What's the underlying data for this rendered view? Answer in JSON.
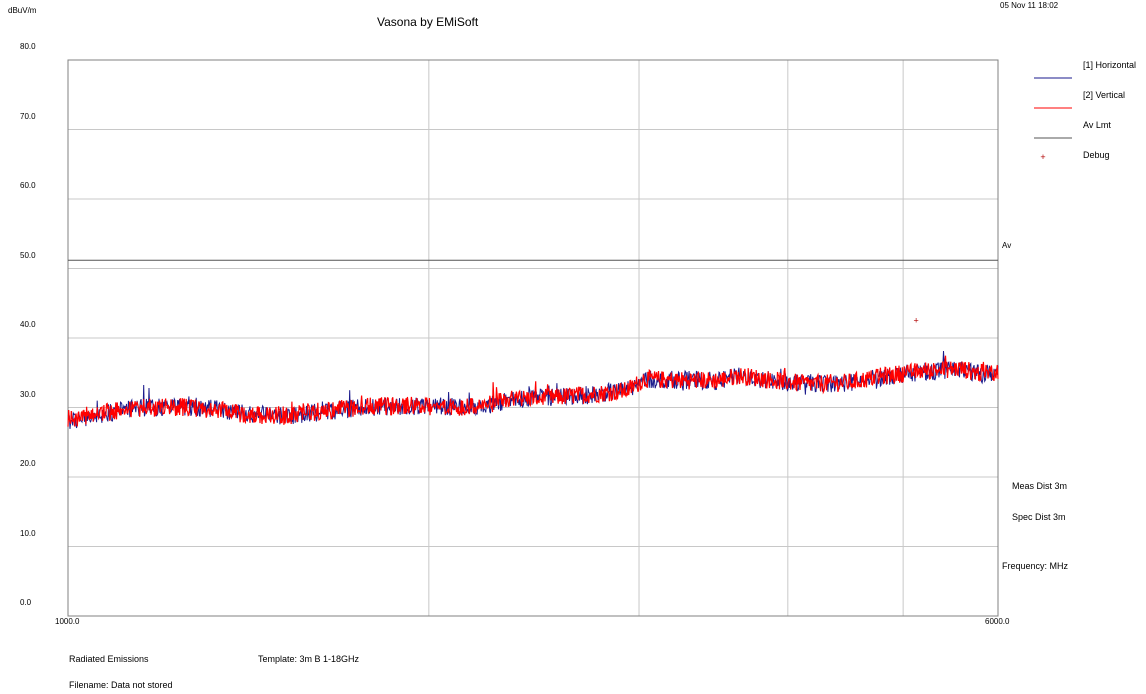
{
  "header": {
    "title": "Vasona by EMiSoft",
    "timestamp": "05 Nov 11 18:02"
  },
  "footer": {
    "test_type": "Radiated Emissions",
    "template": "Template: 3m B 1-18GHz",
    "filename": "Filename: Data not stored"
  },
  "side_notes": {
    "meas_dist": "Meas Dist 3m",
    "spec_dist": "Spec Dist 3m",
    "frequency_unit": "Frequency: MHz",
    "limit_tag": "Av"
  },
  "colors": {
    "horizontal": "#1a1a8c",
    "vertical": "#ff0000",
    "limit": "#555555",
    "debug": "#b00000",
    "grid": "#c8c8c8"
  },
  "chart_data": {
    "type": "line",
    "ylabel": "dBuV/m",
    "xlabel": "",
    "title": "Vasona by EMiSoft",
    "xlim": [
      1000,
      6000
    ],
    "ylim": [
      0,
      80
    ],
    "y_ticks": [
      "0.0",
      "10.0",
      "20.0",
      "30.0",
      "40.0",
      "50.0",
      "60.0",
      "70.0",
      "80.0"
    ],
    "x_ticks": [
      "1000.0",
      "6000.0"
    ],
    "x_grid": [
      1000,
      2940,
      4070,
      4870,
      5490,
      6000
    ],
    "y_grid": [
      0,
      10,
      20,
      30,
      40,
      50,
      60,
      70,
      80
    ],
    "legend_position": "top-right",
    "legend": [
      "[1] Horizontal",
      "[2] Vertical",
      "Av Lmt",
      "Debug"
    ],
    "series": [
      {
        "name": "[1] Horizontal",
        "x": [
          1000,
          1200,
          1400,
          1600,
          1800,
          2000,
          2200,
          2400,
          2600,
          2800,
          3000,
          3200,
          3400,
          3600,
          3800,
          4000,
          4050,
          4100,
          4300,
          4500,
          4600,
          4700,
          4800,
          4900,
          5000,
          5200,
          5400,
          5600,
          5800,
          5900,
          6000
        ],
        "values": [
          28.0,
          29.2,
          30.0,
          30.2,
          29.8,
          29.0,
          28.8,
          29.5,
          30.0,
          30.2,
          30.2,
          30.0,
          31.2,
          31.5,
          31.8,
          32.5,
          33.0,
          34.0,
          34.0,
          33.8,
          34.5,
          34.2,
          33.8,
          33.5,
          33.5,
          33.5,
          34.5,
          35.2,
          35.5,
          34.8,
          35.0
        ]
      },
      {
        "name": "[2] Vertical",
        "x": [
          1000,
          1200,
          1400,
          1600,
          1800,
          2000,
          2200,
          2400,
          2600,
          2800,
          3000,
          3200,
          3400,
          3600,
          3800,
          4000,
          4050,
          4100,
          4300,
          4500,
          4600,
          4700,
          4800,
          4900,
          5000,
          5200,
          5400,
          5600,
          5800,
          5900,
          6000
        ],
        "values": [
          28.2,
          29.3,
          30.0,
          30.1,
          29.6,
          28.9,
          28.9,
          29.6,
          30.1,
          30.3,
          30.1,
          30.1,
          31.3,
          31.4,
          31.9,
          32.4,
          33.2,
          34.1,
          33.9,
          33.9,
          34.6,
          34.3,
          33.9,
          33.6,
          33.4,
          33.6,
          34.6,
          35.3,
          35.6,
          34.9,
          35.1
        ]
      },
      {
        "name": "Av Lmt",
        "x": [
          1000,
          6000
        ],
        "values": [
          51.2,
          51.2
        ]
      }
    ],
    "debug_points": [
      {
        "x": 5560,
        "y": 42.5
      }
    ]
  }
}
